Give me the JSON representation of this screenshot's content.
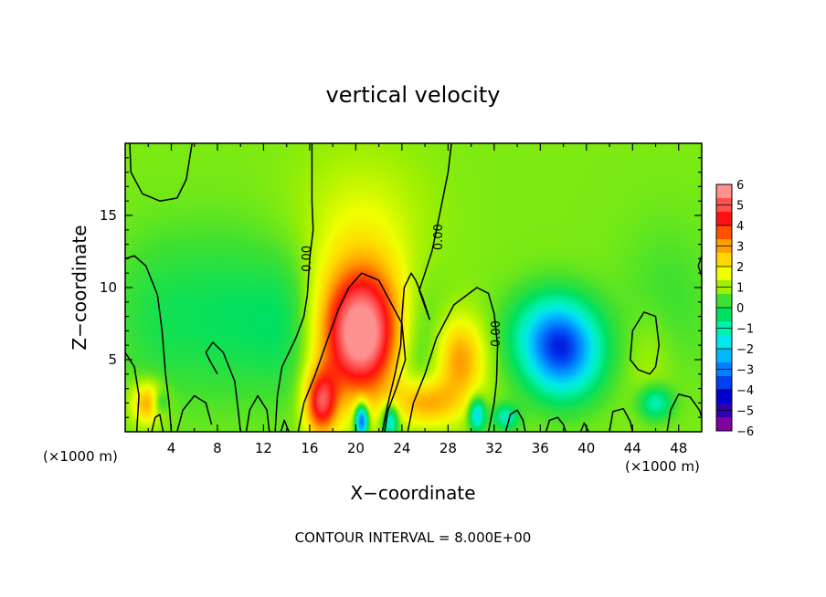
{
  "chart_data": {
    "type": "heatmap",
    "title": "vertical velocity",
    "xlabel": "X−coordinate",
    "ylabel": "Z−coordinate",
    "x_unit_left": "(×1000 m)",
    "x_unit_right": "(×1000 m)",
    "xlim": [
      0,
      50
    ],
    "ylim": [
      0,
      20
    ],
    "x_ticks": [
      4,
      8,
      12,
      16,
      20,
      24,
      28,
      32,
      36,
      40,
      44,
      48
    ],
    "x_tick_labels": [
      "4",
      "8",
      "12",
      "16",
      "20",
      "24",
      "28",
      "32",
      "36",
      "40",
      "44",
      "48"
    ],
    "y_ticks": [
      5,
      10,
      15
    ],
    "y_tick_labels": [
      "5",
      "10",
      "15"
    ],
    "footer": "CONTOUR INTERVAL = 8.000E+00",
    "contour_label": "0.00",
    "colorbar": {
      "tick_labels": [
        "6",
        "5",
        "4",
        "3",
        "2",
        "1",
        "0",
        "−1",
        "−2",
        "−3",
        "−4",
        "−5",
        "−6"
      ],
      "colors": [
        "#ff9090",
        "#ff5050",
        "#ff1010",
        "#ff5000",
        "#ffa000",
        "#ffd800",
        "#f0ff00",
        "#a0f000",
        "#40e030",
        "#00e060",
        "#00f0b0",
        "#00e8e8",
        "#00b8ff",
        "#0080ff",
        "#0040f0",
        "#0000d0",
        "#3000b0",
        "#8000a0"
      ]
    },
    "background_value": 0.8,
    "features": [
      {
        "kind": "updraft",
        "x": 20.5,
        "z": 6.5,
        "peak": 5.0,
        "sx": 2.6,
        "sz": 3.0
      },
      {
        "kind": "updraft",
        "x": 17.0,
        "z": 2.0,
        "peak": 4.0,
        "sx": 1.0,
        "sz": 1.6
      },
      {
        "kind": "updraft",
        "x": 20.5,
        "z": 9.5,
        "peak": 1.5,
        "sx": 3.5,
        "sz": 4.0
      },
      {
        "kind": "updraft",
        "x": 29.0,
        "z": 5.0,
        "peak": 2.5,
        "sx": 1.5,
        "sz": 2.0
      },
      {
        "kind": "updraft",
        "x": 26.0,
        "z": 2.0,
        "peak": 2.5,
        "sx": 2.0,
        "sz": 1.2
      },
      {
        "kind": "updraft",
        "x": 2.0,
        "z": 2.0,
        "peak": 2.5,
        "sx": 1.0,
        "sz": 1.0
      },
      {
        "kind": "updraft",
        "x": 45.5,
        "z": 5.0,
        "peak": 0.5,
        "sx": 1.5,
        "sz": 2.5
      },
      {
        "kind": "updraft",
        "x": 20.5,
        "z": 16.0,
        "peak": 0.4,
        "sx": 4.0,
        "sz": 3.0
      },
      {
        "kind": "downdraft",
        "x": 38.0,
        "z": 5.5,
        "peak": -4.0,
        "sx": 2.3,
        "sz": 2.2
      },
      {
        "kind": "downdraft",
        "x": 36.5,
        "z": 7.0,
        "peak": -1.5,
        "sx": 2.5,
        "sz": 2.0
      },
      {
        "kind": "downdraft",
        "x": 25.0,
        "z": 6.0,
        "peak": -1.4,
        "sx": 2.0,
        "sz": 3.5
      },
      {
        "kind": "downdraft",
        "x": 14.5,
        "z": 7.5,
        "peak": -1.2,
        "sx": 2.5,
        "sz": 3.5
      },
      {
        "kind": "downdraft",
        "x": 9.0,
        "z": 8.0,
        "peak": -0.9,
        "sx": 3.0,
        "sz": 4.0
      },
      {
        "kind": "downdraft",
        "x": 3.0,
        "z": 8.0,
        "peak": -0.8,
        "sx": 3.0,
        "sz": 4.0
      },
      {
        "kind": "downdraft",
        "x": 47.0,
        "z": 9.0,
        "peak": -0.5,
        "sx": 3.0,
        "sz": 4.0
      },
      {
        "kind": "downdraft",
        "x": 20.5,
        "z": 0.8,
        "peak": -5.0,
        "sx": 0.4,
        "sz": 0.8
      },
      {
        "kind": "downdraft",
        "x": 23.0,
        "z": 0.8,
        "peak": -3.0,
        "sx": 0.5,
        "sz": 0.8
      },
      {
        "kind": "downdraft",
        "x": 30.5,
        "z": 1.2,
        "peak": -3.0,
        "sx": 0.5,
        "sz": 0.8
      },
      {
        "kind": "downdraft",
        "x": 33.0,
        "z": 1.0,
        "peak": -2.0,
        "sx": 0.8,
        "sz": 0.6
      },
      {
        "kind": "downdraft",
        "x": 46.0,
        "z": 2.0,
        "peak": -2.0,
        "sx": 1.0,
        "sz": 0.8
      },
      {
        "kind": "downdraft",
        "x": 3.0,
        "z": 2.0,
        "peak": -1.5,
        "sx": 0.5,
        "sz": 0.6
      }
    ],
    "zero_contours": [
      {
        "points": [
          [
            0.4,
            20
          ],
          [
            0.5,
            18
          ],
          [
            1.5,
            16.5
          ],
          [
            3,
            16
          ],
          [
            4.5,
            16.2
          ],
          [
            5.3,
            17.5
          ],
          [
            5.8,
            20
          ]
        ]
      },
      {
        "points": [
          [
            16.2,
            20
          ],
          [
            16.2,
            16
          ],
          [
            16.3,
            14
          ],
          [
            16.0,
            12
          ],
          [
            15.8,
            9.5
          ],
          [
            15.5,
            8
          ],
          [
            14.8,
            6.5
          ],
          [
            13.6,
            4.5
          ],
          [
            13.2,
            2.5
          ],
          [
            13.0,
            0
          ]
        ],
        "label_at": [
          15.8,
          12.0
        ]
      },
      {
        "points": [
          [
            28.3,
            20
          ],
          [
            28.0,
            18
          ],
          [
            27.5,
            16
          ],
          [
            27.0,
            14
          ],
          [
            26.6,
            12.5
          ],
          [
            26.0,
            11
          ],
          [
            25.5,
            9.8
          ],
          [
            26.3,
            8
          ],
          [
            26.4,
            7.8
          ],
          [
            25.8,
            9.3
          ],
          [
            25.2,
            10.5
          ],
          [
            24.8,
            11
          ],
          [
            24.2,
            10
          ],
          [
            24.0,
            8
          ],
          [
            23.9,
            6
          ],
          [
            23.4,
            4
          ],
          [
            22.8,
            2
          ],
          [
            22.3,
            0
          ]
        ],
        "label_at": [
          27.2,
          13.5
        ]
      },
      {
        "points": [
          [
            15.0,
            0
          ],
          [
            15.5,
            2
          ],
          [
            16.5,
            4
          ],
          [
            17.6,
            6.5
          ],
          [
            18.5,
            8.5
          ],
          [
            19.4,
            10
          ],
          [
            20.5,
            11
          ],
          [
            22.0,
            10.5
          ],
          [
            23.0,
            9
          ],
          [
            24.0,
            7.5
          ],
          [
            24.3,
            5
          ],
          [
            23.5,
            3
          ],
          [
            22.8,
            1.5
          ],
          [
            22.5,
            0
          ]
        ]
      },
      {
        "points": [
          [
            24.5,
            0
          ],
          [
            25.0,
            2
          ],
          [
            26.0,
            4
          ],
          [
            27.0,
            6.5
          ],
          [
            28.5,
            8.8
          ],
          [
            30.5,
            10
          ],
          [
            31.5,
            9.6
          ],
          [
            32.0,
            8.2
          ],
          [
            32.3,
            6
          ],
          [
            32.2,
            3.5
          ],
          [
            32.0,
            2
          ],
          [
            31.5,
            0
          ]
        ],
        "label_at": [
          32.2,
          6.8
        ]
      },
      {
        "points": [
          [
            0,
            12
          ],
          [
            0.8,
            12.2
          ],
          [
            1.8,
            11.5
          ],
          [
            2.8,
            9.5
          ],
          [
            3.2,
            7
          ],
          [
            3.5,
            4
          ],
          [
            3.8,
            2
          ],
          [
            4.0,
            0
          ]
        ]
      },
      {
        "points": [
          [
            4.5,
            0
          ],
          [
            5.0,
            1.5
          ],
          [
            6.0,
            2.5
          ],
          [
            7.0,
            2.0
          ],
          [
            7.5,
            0.5
          ]
        ]
      },
      {
        "points": [
          [
            7.0,
            5.5
          ],
          [
            7.6,
            6.2
          ],
          [
            8.5,
            5.5
          ],
          [
            9.5,
            3.5
          ],
          [
            9.8,
            1.5
          ],
          [
            10.0,
            0
          ]
        ]
      },
      {
        "points": [
          [
            8.0,
            4
          ],
          [
            7.3,
            5
          ],
          [
            7.0,
            5.5
          ]
        ]
      },
      {
        "points": [
          [
            10.5,
            0
          ],
          [
            10.8,
            1.5
          ],
          [
            11.5,
            2.5
          ],
          [
            12.3,
            1.5
          ],
          [
            12.5,
            0
          ]
        ]
      },
      {
        "points": [
          [
            36.5,
            0
          ],
          [
            36.8,
            0.8
          ],
          [
            37.5,
            1.0
          ],
          [
            38.0,
            0.5
          ],
          [
            38.2,
            0
          ]
        ]
      },
      {
        "points": [
          [
            45.5,
            4
          ],
          [
            44.5,
            4.3
          ],
          [
            43.8,
            5
          ],
          [
            44.0,
            7
          ],
          [
            45.0,
            8.3
          ],
          [
            46.0,
            8.0
          ],
          [
            46.3,
            6
          ],
          [
            46.0,
            4.5
          ],
          [
            45.5,
            4
          ]
        ]
      },
      {
        "points": [
          [
            47.0,
            0
          ],
          [
            47.3,
            1.5
          ],
          [
            48.0,
            2.6
          ],
          [
            49.0,
            2.4
          ],
          [
            49.8,
            1.5
          ],
          [
            50,
            1.0
          ]
        ]
      },
      {
        "points": [
          [
            50,
            12.2
          ],
          [
            49.7,
            11.5
          ],
          [
            50,
            10.8
          ]
        ]
      },
      {
        "points": [
          [
            0,
            5.5
          ],
          [
            0.8,
            4.5
          ],
          [
            1.2,
            2.5
          ],
          [
            1.0,
            0
          ]
        ]
      },
      {
        "points": [
          [
            2.3,
            0
          ],
          [
            2.6,
            1.0
          ],
          [
            3.0,
            1.2
          ],
          [
            3.3,
            0
          ]
        ]
      },
      {
        "points": [
          [
            13.5,
            0
          ],
          [
            13.8,
            0.8
          ],
          [
            14.2,
            0
          ]
        ]
      },
      {
        "points": [
          [
            33.0,
            0
          ],
          [
            33.4,
            1.2
          ],
          [
            34.0,
            1.5
          ],
          [
            34.5,
            0.8
          ],
          [
            34.7,
            0
          ]
        ]
      },
      {
        "points": [
          [
            39.5,
            0
          ],
          [
            39.8,
            0.6
          ],
          [
            40.2,
            0
          ]
        ]
      },
      {
        "points": [
          [
            42.0,
            0
          ],
          [
            42.3,
            1.4
          ],
          [
            43.2,
            1.6
          ],
          [
            43.8,
            0.7
          ],
          [
            44.0,
            0
          ]
        ]
      }
    ]
  }
}
